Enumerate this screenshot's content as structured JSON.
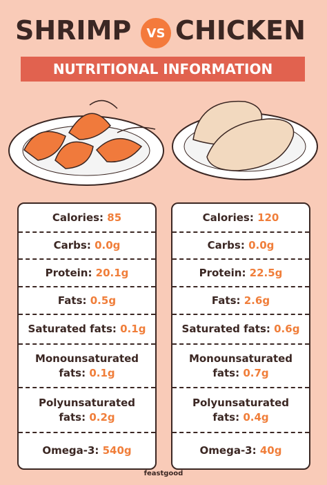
{
  "header": {
    "left": "SHRIMP",
    "vs": "VS",
    "right": "CHICKEN",
    "banner": "NUTRITIONAL INFORMATION"
  },
  "cards": [
    {
      "rows": [
        {
          "label": "Calories:",
          "value": "85"
        },
        {
          "label": "Carbs:",
          "value": "0.0g"
        },
        {
          "label": "Protein:",
          "value": "20.1g"
        },
        {
          "label": "Fats:",
          "value": "0.5g"
        },
        {
          "label": "Saturated fats:",
          "value": "0.1g"
        },
        {
          "label": "Monounsaturated fats:",
          "value": "0.1g"
        },
        {
          "label": "Polyunsaturated fats:",
          "value": "0.2g"
        },
        {
          "label": "Omega-3:",
          "value": "540g"
        }
      ]
    },
    {
      "rows": [
        {
          "label": "Calories:",
          "value": "120"
        },
        {
          "label": "Carbs:",
          "value": "0.0g"
        },
        {
          "label": "Protein:",
          "value": "22.5g"
        },
        {
          "label": "Fats:",
          "value": "2.6g"
        },
        {
          "label": "Saturated fats:",
          "value": "0.6g"
        },
        {
          "label": "Monounsaturated fats:",
          "value": "0.7g"
        },
        {
          "label": "Polyunsaturated fats:",
          "value": "0.4g"
        },
        {
          "label": "Omega-3:",
          "value": "40g"
        }
      ]
    }
  ],
  "footer": "feastgood"
}
